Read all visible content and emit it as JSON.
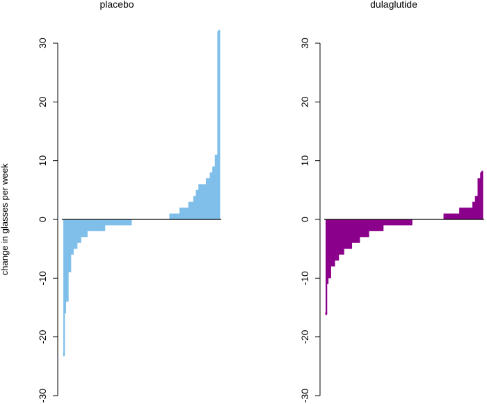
{
  "ylabel": "change in glasses per week",
  "chart_data": [
    {
      "type": "bar",
      "title": "placebo",
      "color": "#7fbfea",
      "ylim": [
        -30,
        33
      ],
      "yticks": [
        -30,
        -20,
        -10,
        0,
        10,
        20,
        30
      ],
      "ytick_labels": [
        "-30",
        "-20",
        "-10",
        "0",
        "10",
        "20",
        "30"
      ],
      "ylabel": "change in glasses per week",
      "grid": false,
      "sorted": true,
      "segments": [
        {
          "value": -23,
          "count": 1
        },
        {
          "value": -16,
          "count": 1
        },
        {
          "value": -14,
          "count": 2
        },
        {
          "value": -9,
          "count": 2
        },
        {
          "value": -6,
          "count": 2
        },
        {
          "value": -5,
          "count": 3
        },
        {
          "value": -4,
          "count": 3
        },
        {
          "value": -3,
          "count": 5
        },
        {
          "value": -2,
          "count": 14
        },
        {
          "value": -1,
          "count": 21
        },
        {
          "value": 0,
          "count": 30
        },
        {
          "value": 1,
          "count": 8
        },
        {
          "value": 2,
          "count": 7
        },
        {
          "value": 3,
          "count": 4
        },
        {
          "value": 4,
          "count": 2
        },
        {
          "value": 5,
          "count": 2
        },
        {
          "value": 6,
          "count": 6
        },
        {
          "value": 7,
          "count": 3
        },
        {
          "value": 8,
          "count": 2
        },
        {
          "value": 9,
          "count": 2
        },
        {
          "value": 11,
          "count": 2
        },
        {
          "value": 32,
          "count": 2
        }
      ]
    },
    {
      "type": "bar",
      "title": "dulaglutide",
      "color": "#8b008b",
      "ylim": [
        -30,
        33
      ],
      "yticks": [
        -30,
        -20,
        -10,
        0,
        10,
        20,
        30
      ],
      "ytick_labels": [
        "-30",
        "-20",
        "-10",
        "0",
        "10",
        "20",
        "30"
      ],
      "grid": false,
      "sorted": true,
      "segments": [
        {
          "value": -16,
          "count": 1
        },
        {
          "value": -11,
          "count": 1
        },
        {
          "value": -10,
          "count": 2
        },
        {
          "value": -8,
          "count": 3
        },
        {
          "value": -7,
          "count": 3
        },
        {
          "value": -6,
          "count": 4
        },
        {
          "value": -5,
          "count": 6
        },
        {
          "value": -4,
          "count": 6
        },
        {
          "value": -3,
          "count": 7
        },
        {
          "value": -2,
          "count": 11
        },
        {
          "value": -1,
          "count": 22
        },
        {
          "value": 0,
          "count": 24
        },
        {
          "value": 1,
          "count": 12
        },
        {
          "value": 2,
          "count": 10
        },
        {
          "value": 3,
          "count": 2
        },
        {
          "value": 4,
          "count": 2
        },
        {
          "value": 7,
          "count": 2
        },
        {
          "value": 8,
          "count": 2
        }
      ]
    }
  ]
}
